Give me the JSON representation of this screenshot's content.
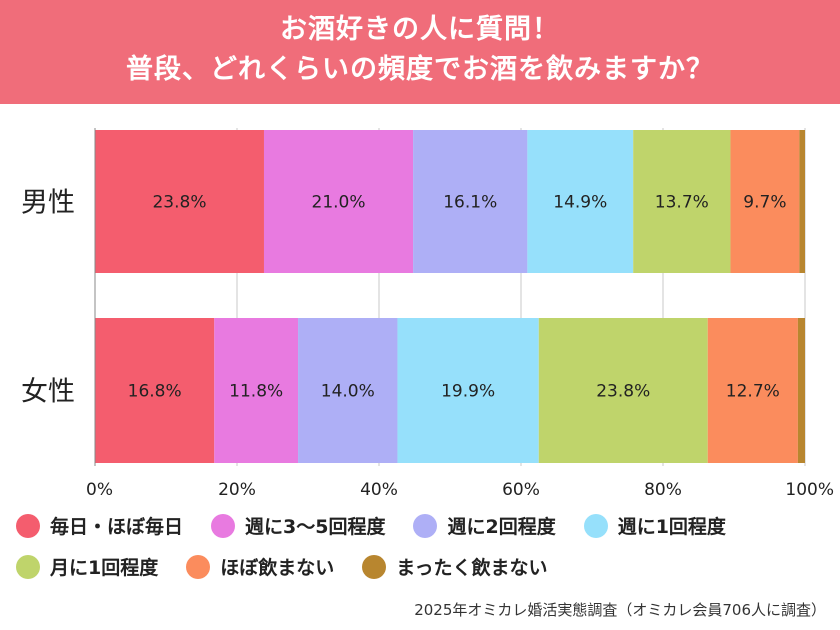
{
  "header": {
    "line1": "お酒好きの人に質問！",
    "line2": "普段、どれくらいの頻度でお酒を飲みますか？"
  },
  "source": "2025年オミカレ婚活実態調査（オミカレ会員706人に調査）",
  "chart_data": {
    "type": "bar",
    "stacked": true,
    "orientation": "horizontal",
    "title": "",
    "xlabel": "",
    "ylabel": "",
    "xlim": [
      0,
      100
    ],
    "x_ticks": [
      "0%",
      "20%",
      "40%",
      "60%",
      "80%",
      "100%"
    ],
    "categories": [
      "男性",
      "女性"
    ],
    "legend_position": "bottom",
    "series": [
      {
        "name": "毎日・ほぼ毎日",
        "color": "#f45d6e",
        "values": [
          23.8,
          16.8
        ],
        "labels": [
          "23.8%",
          "16.8%"
        ]
      },
      {
        "name": "週に3〜5回程度",
        "color": "#e87ae0",
        "values": [
          21.0,
          11.8
        ],
        "labels": [
          "21.0%",
          "11.8%"
        ]
      },
      {
        "name": "週に2回程度",
        "color": "#aeaff6",
        "values": [
          16.1,
          14.0
        ],
        "labels": [
          "16.1%",
          "14.0%"
        ]
      },
      {
        "name": "週に1回程度",
        "color": "#96e0fb",
        "values": [
          14.9,
          19.9
        ],
        "labels": [
          "14.9%",
          "19.9%"
        ]
      },
      {
        "name": "月に1回程度",
        "color": "#bfd46b",
        "values": [
          13.7,
          23.8
        ],
        "labels": [
          "13.7%",
          "23.8%"
        ]
      },
      {
        "name": "ほぼ飲まない",
        "color": "#fb8c5d",
        "values": [
          9.7,
          12.7
        ],
        "labels": [
          "9.7%",
          "12.7%"
        ]
      },
      {
        "name": "まったく飲まない",
        "color": "#b8862f",
        "values": [
          0.8,
          1.0
        ],
        "labels": [
          "",
          ""
        ]
      }
    ]
  }
}
